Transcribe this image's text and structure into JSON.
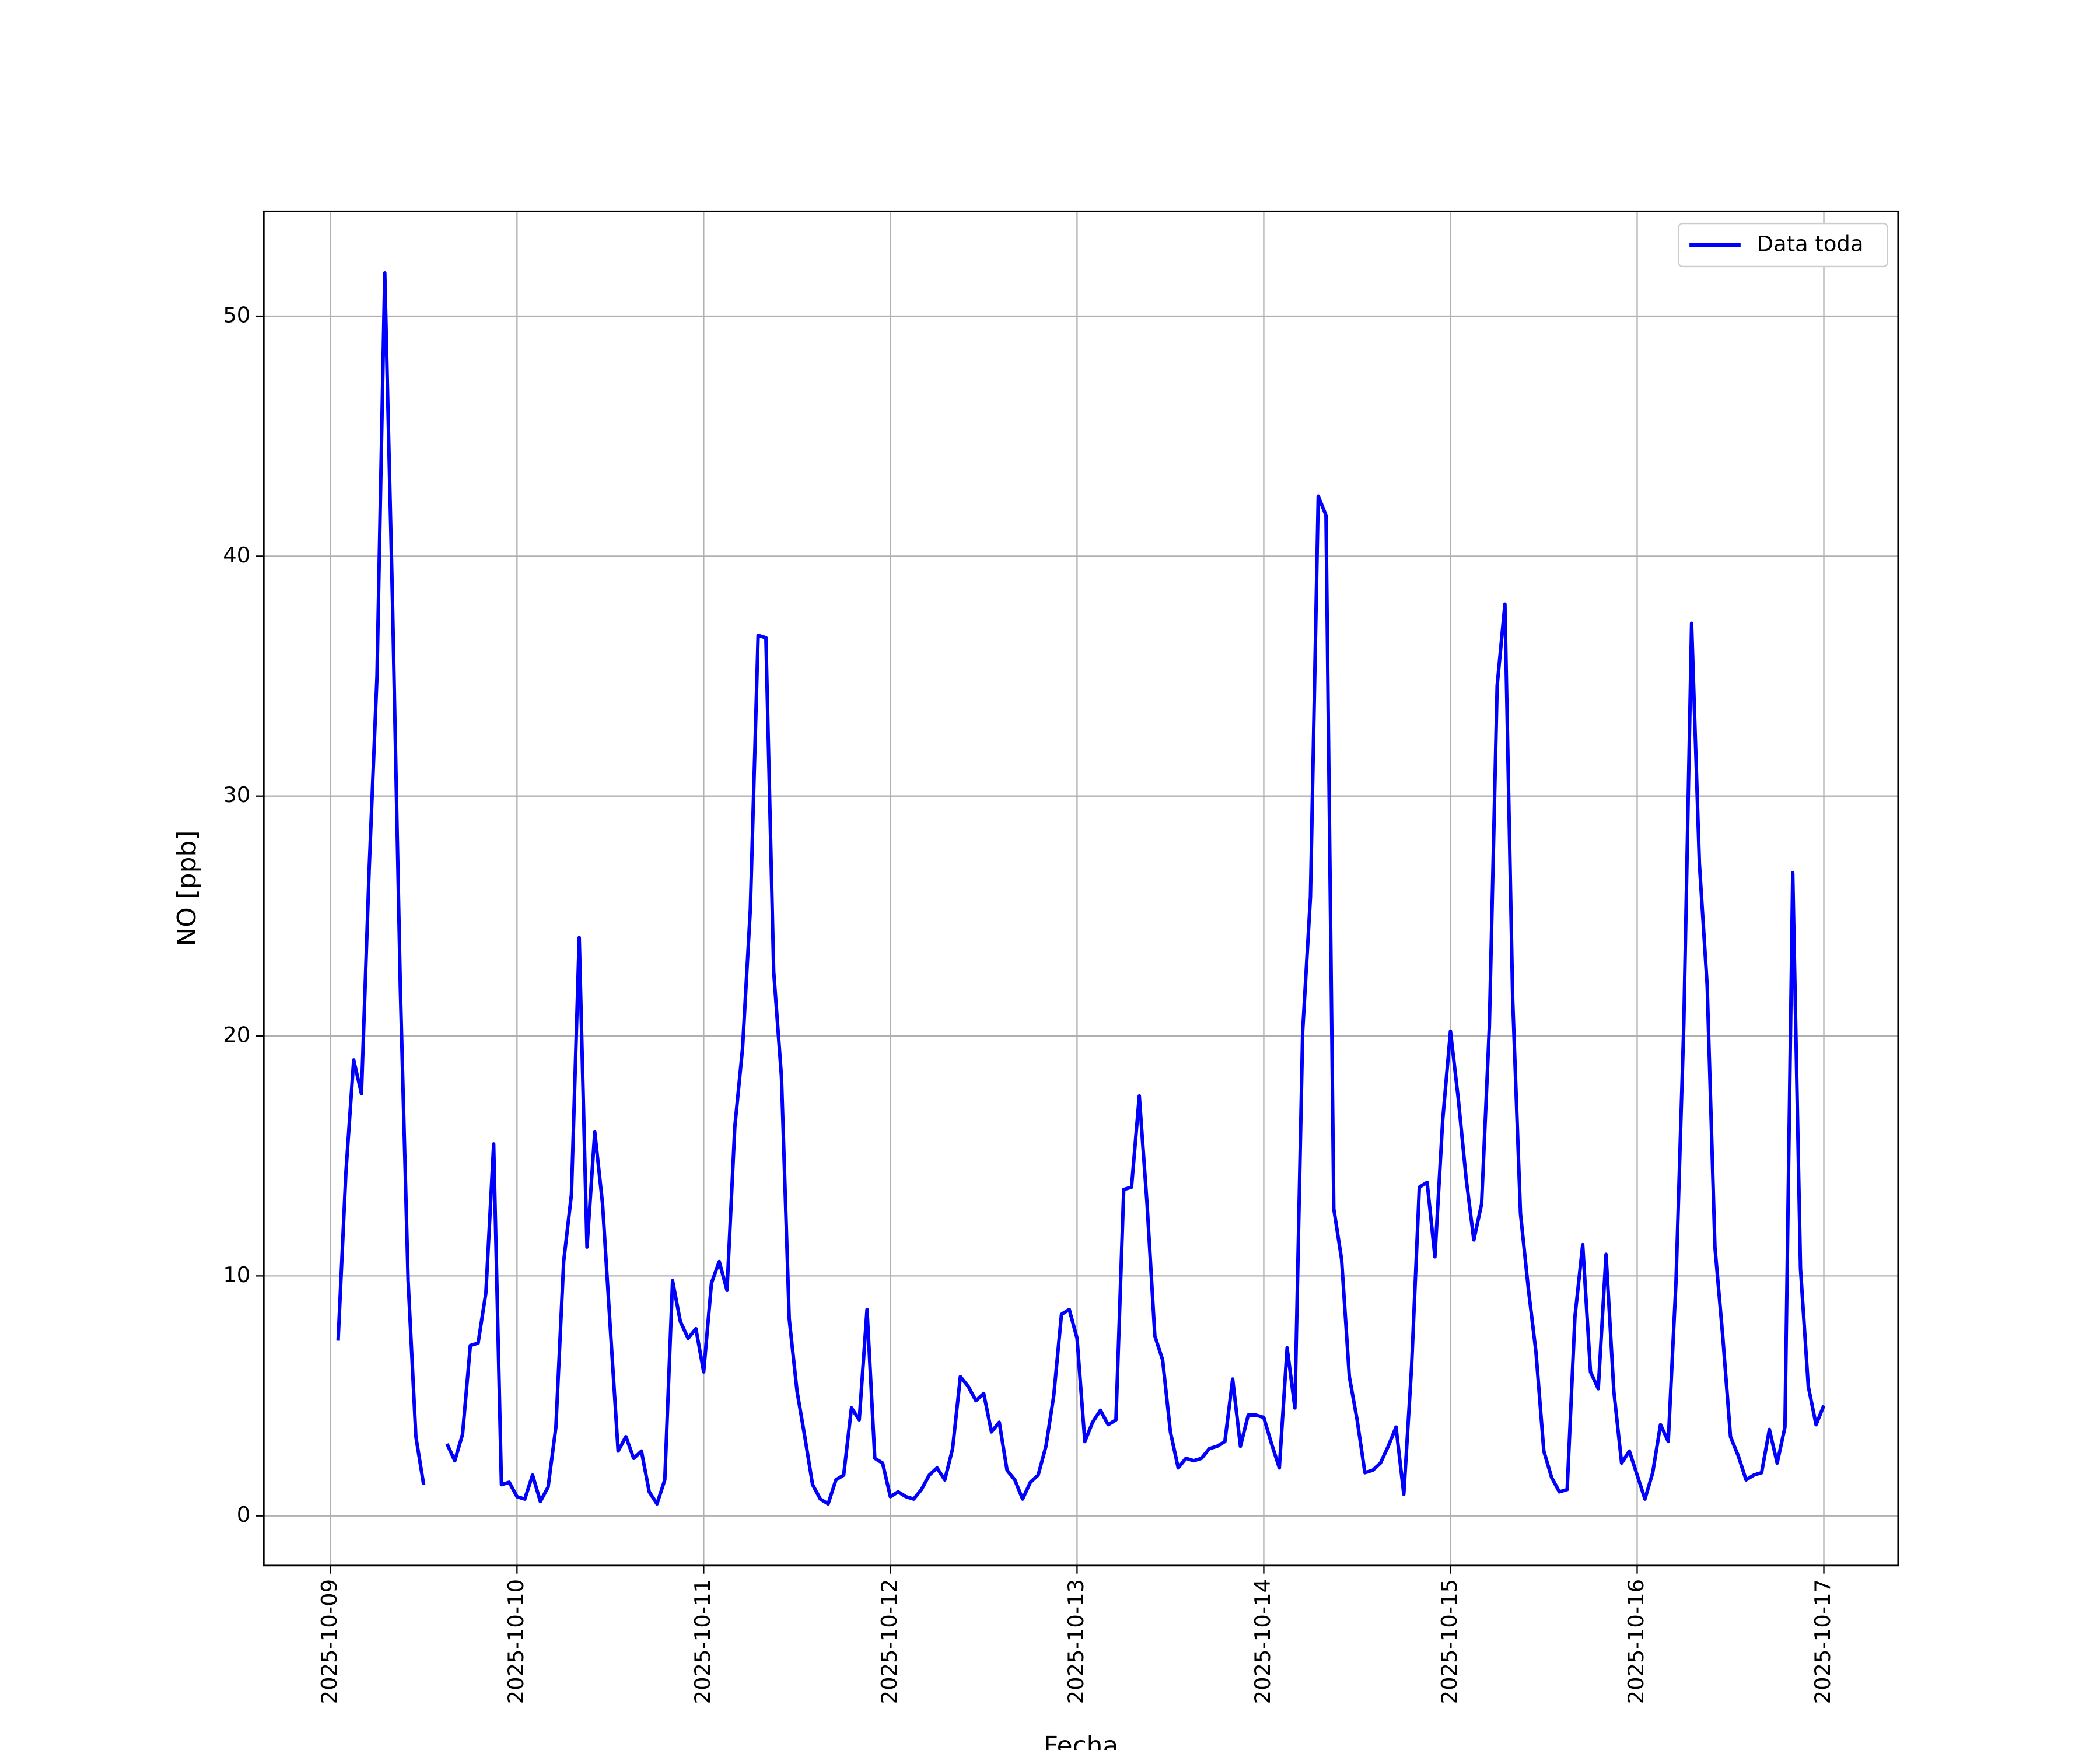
{
  "chart_data": {
    "type": "line",
    "x_label": "Fecha",
    "y_label": "NO [ppb]",
    "x": [
      "2025-10-09T01:00",
      "2025-10-09T02:00",
      "2025-10-09T03:00",
      "2025-10-09T04:00",
      "2025-10-09T05:00",
      "2025-10-09T06:00",
      "2025-10-09T07:00",
      "2025-10-09T08:00",
      "2025-10-09T09:00",
      "2025-10-09T10:00",
      "2025-10-09T11:00",
      "2025-10-09T12:00",
      "2025-10-09T13:00",
      "2025-10-09T14:00",
      "2025-10-09T15:00",
      "2025-10-09T16:00",
      "2025-10-09T17:00",
      "2025-10-09T18:00",
      "2025-10-09T19:00",
      "2025-10-09T20:00",
      "2025-10-09T21:00",
      "2025-10-09T22:00",
      "2025-10-09T23:00",
      "2025-10-10T00:00",
      "2025-10-10T01:00",
      "2025-10-10T02:00",
      "2025-10-10T03:00",
      "2025-10-10T04:00",
      "2025-10-10T05:00",
      "2025-10-10T06:00",
      "2025-10-10T07:00",
      "2025-10-10T08:00",
      "2025-10-10T09:00",
      "2025-10-10T10:00",
      "2025-10-10T11:00",
      "2025-10-10T12:00",
      "2025-10-10T13:00",
      "2025-10-10T14:00",
      "2025-10-10T15:00",
      "2025-10-10T16:00",
      "2025-10-10T17:00",
      "2025-10-10T18:00",
      "2025-10-10T19:00",
      "2025-10-10T20:00",
      "2025-10-10T21:00",
      "2025-10-10T22:00",
      "2025-10-10T23:00",
      "2025-10-11T00:00",
      "2025-10-11T01:00",
      "2025-10-11T02:00",
      "2025-10-11T03:00",
      "2025-10-11T04:00",
      "2025-10-11T05:00",
      "2025-10-11T06:00",
      "2025-10-11T07:00",
      "2025-10-11T08:00",
      "2025-10-11T09:00",
      "2025-10-11T10:00",
      "2025-10-11T11:00",
      "2025-10-11T12:00",
      "2025-10-11T13:00",
      "2025-10-11T14:00",
      "2025-10-11T15:00",
      "2025-10-11T16:00",
      "2025-10-11T17:00",
      "2025-10-11T18:00",
      "2025-10-11T19:00",
      "2025-10-11T20:00",
      "2025-10-11T21:00",
      "2025-10-11T22:00",
      "2025-10-11T23:00",
      "2025-10-12T00:00",
      "2025-10-12T01:00",
      "2025-10-12T02:00",
      "2025-10-12T03:00",
      "2025-10-12T04:00",
      "2025-10-12T05:00",
      "2025-10-12T06:00",
      "2025-10-12T07:00",
      "2025-10-12T08:00",
      "2025-10-12T09:00",
      "2025-10-12T10:00",
      "2025-10-12T11:00",
      "2025-10-12T12:00",
      "2025-10-12T13:00",
      "2025-10-12T14:00",
      "2025-10-12T15:00",
      "2025-10-12T16:00",
      "2025-10-12T17:00",
      "2025-10-12T18:00",
      "2025-10-12T19:00",
      "2025-10-12T20:00",
      "2025-10-12T21:00",
      "2025-10-12T22:00",
      "2025-10-12T23:00",
      "2025-10-13T00:00",
      "2025-10-13T01:00",
      "2025-10-13T02:00",
      "2025-10-13T03:00",
      "2025-10-13T04:00",
      "2025-10-13T05:00",
      "2025-10-13T06:00",
      "2025-10-13T07:00",
      "2025-10-13T08:00",
      "2025-10-13T09:00",
      "2025-10-13T10:00",
      "2025-10-13T11:00",
      "2025-10-13T12:00",
      "2025-10-13T13:00",
      "2025-10-13T14:00",
      "2025-10-13T15:00",
      "2025-10-13T16:00",
      "2025-10-13T17:00",
      "2025-10-13T18:00",
      "2025-10-13T19:00",
      "2025-10-13T20:00",
      "2025-10-13T21:00",
      "2025-10-13T22:00",
      "2025-10-13T23:00",
      "2025-10-14T00:00",
      "2025-10-14T01:00",
      "2025-10-14T02:00",
      "2025-10-14T03:00",
      "2025-10-14T04:00",
      "2025-10-14T05:00",
      "2025-10-14T06:00",
      "2025-10-14T07:00",
      "2025-10-14T08:00",
      "2025-10-14T09:00",
      "2025-10-14T10:00",
      "2025-10-14T11:00",
      "2025-10-14T12:00",
      "2025-10-14T13:00",
      "2025-10-14T14:00",
      "2025-10-14T15:00",
      "2025-10-14T16:00",
      "2025-10-14T17:00",
      "2025-10-14T18:00",
      "2025-10-14T19:00",
      "2025-10-14T20:00",
      "2025-10-14T21:00",
      "2025-10-14T22:00",
      "2025-10-14T23:00",
      "2025-10-15T00:00",
      "2025-10-15T01:00",
      "2025-10-15T02:00",
      "2025-10-15T03:00",
      "2025-10-15T04:00",
      "2025-10-15T05:00",
      "2025-10-15T06:00",
      "2025-10-15T07:00",
      "2025-10-15T08:00",
      "2025-10-15T09:00",
      "2025-10-15T10:00",
      "2025-10-15T11:00",
      "2025-10-15T12:00",
      "2025-10-15T13:00",
      "2025-10-15T14:00",
      "2025-10-15T15:00",
      "2025-10-15T16:00",
      "2025-10-15T17:00",
      "2025-10-15T18:00",
      "2025-10-15T19:00",
      "2025-10-15T20:00",
      "2025-10-15T21:00",
      "2025-10-15T22:00",
      "2025-10-15T23:00",
      "2025-10-16T00:00",
      "2025-10-16T01:00",
      "2025-10-16T02:00",
      "2025-10-16T03:00",
      "2025-10-16T04:00",
      "2025-10-16T05:00",
      "2025-10-16T06:00",
      "2025-10-16T07:00",
      "2025-10-16T08:00",
      "2025-10-16T09:00",
      "2025-10-16T10:00",
      "2025-10-16T11:00",
      "2025-10-16T12:00",
      "2025-10-16T13:00",
      "2025-10-16T14:00",
      "2025-10-16T15:00",
      "2025-10-16T16:00",
      "2025-10-16T17:00",
      "2025-10-16T18:00",
      "2025-10-16T19:00",
      "2025-10-16T20:00",
      "2025-10-16T21:00",
      "2025-10-16T22:00",
      "2025-10-16T23:00",
      "2025-10-17T00:00"
    ],
    "series": [
      {
        "name": "Data toda",
        "color": "#0000ff",
        "values": [
          7.3,
          14.3,
          19.0,
          17.6,
          27,
          35,
          51.8,
          38,
          22,
          9.8,
          3.3,
          1.3,
          null,
          null,
          3.0,
          2.3,
          3.4,
          7.1,
          7.2,
          9.3,
          15.5,
          1.3,
          1.4,
          0.8,
          0.7,
          1.7,
          0.6,
          1.2,
          3.7,
          10.6,
          13.4,
          24.1,
          11.2,
          16.0,
          13.0,
          7.8,
          2.7,
          3.3,
          2.4,
          2.7,
          1.0,
          0.5,
          1.5,
          9.8,
          8.1,
          7.4,
          7.8,
          6.0,
          9.7,
          10.6,
          9.4,
          16.2,
          19.5,
          25.3,
          36.7,
          36.6,
          22.7,
          18.3,
          8.2,
          5.2,
          3.3,
          1.3,
          0.7,
          0.5,
          1.5,
          1.7,
          4.5,
          4.0,
          8.6,
          2.4,
          2.2,
          0.8,
          1.0,
          0.8,
          0.7,
          1.1,
          1.7,
          2.0,
          1.5,
          2.8,
          5.8,
          5.4,
          4.8,
          5.1,
          3.5,
          3.9,
          1.9,
          1.5,
          0.7,
          1.4,
          1.7,
          2.9,
          5.0,
          8.4,
          8.6,
          7.4,
          3.1,
          3.9,
          4.4,
          3.8,
          4.0,
          13.6,
          13.7,
          17.5,
          13.0,
          7.5,
          6.5,
          3.5,
          2.0,
          2.4,
          2.3,
          2.4,
          2.8,
          2.9,
          3.1,
          5.7,
          2.9,
          4.2,
          4.2,
          4.1,
          3.0,
          2.0,
          7.0,
          4.5,
          20.2,
          25.8,
          42.5,
          41.7,
          12.8,
          10.7,
          5.8,
          4.0,
          1.8,
          1.9,
          2.2,
          2.9,
          3.7,
          0.9,
          6.2,
          13.7,
          13.9,
          10.8,
          16.5,
          20.2,
          17.4,
          14.1,
          11.5,
          13.0,
          20.4,
          34.6,
          38.0,
          21.5,
          12.6,
          9.5,
          6.8,
          2.7,
          1.6,
          1.0,
          1.1,
          8.3,
          11.3,
          6.0,
          5.3,
          10.9,
          5.2,
          2.2,
          2.7,
          1.7,
          0.7,
          1.8,
          3.8,
          3.1,
          9.8,
          20.5,
          37.2,
          27.2,
          22.1,
          11.2,
          7.5,
          3.3,
          2.5,
          1.5,
          1.7,
          1.8,
          3.6,
          2.2,
          3.7,
          26.8,
          10.3,
          5.4,
          3.8,
          4.6
        ]
      }
    ],
    "xlim": [
      "2025-10-08T15:27",
      "2025-10-17T09:33"
    ],
    "xticks": [
      "2025-10-09",
      "2025-10-10",
      "2025-10-11",
      "2025-10-12",
      "2025-10-13",
      "2025-10-14",
      "2025-10-15",
      "2025-10-16",
      "2025-10-17"
    ],
    "ylim": [
      -2.07,
      54.37
    ],
    "yticks": [
      0,
      10,
      20,
      30,
      40,
      50
    ],
    "grid": true,
    "legend": "upper right"
  }
}
